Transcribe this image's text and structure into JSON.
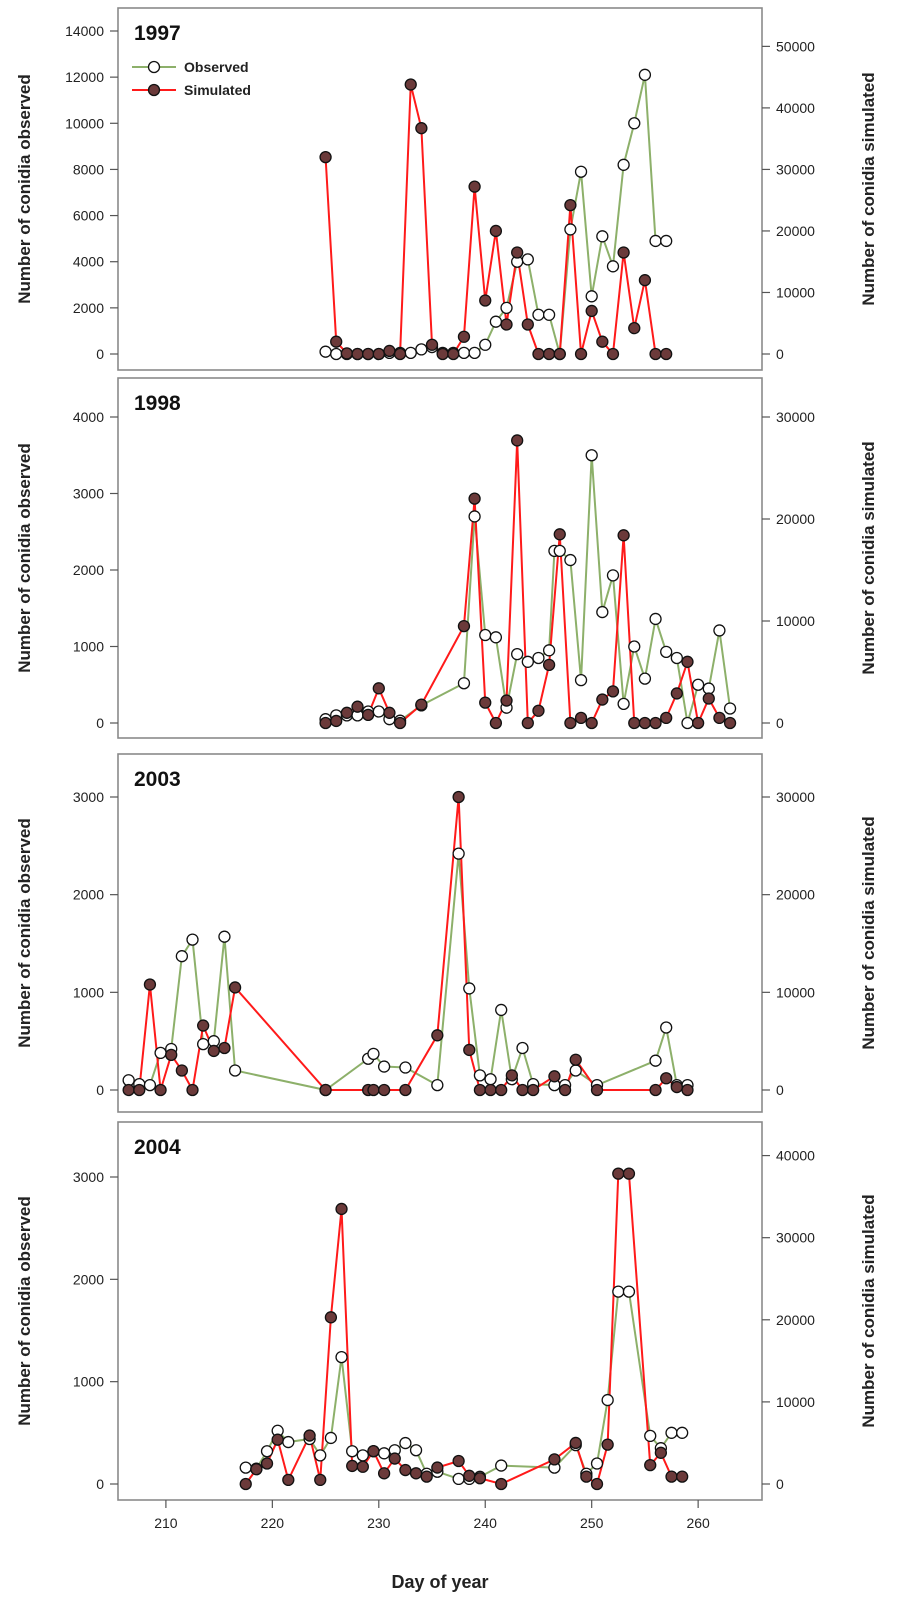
{
  "figure": {
    "xlabel": "Day of year",
    "x_ticks": [
      210,
      220,
      230,
      240,
      250,
      260
    ],
    "xlim": [
      205.5,
      266
    ],
    "left_ylabel": "Number of conidia observed",
    "right_ylabel": "Number of conidia simulated",
    "colors": {
      "observed_line": "#8db06a",
      "simulated_line": "#ff1a1a",
      "simulated_marker": "#6b3a3a",
      "observed_marker": "#ffffff"
    }
  },
  "legend": {
    "observed": "Observed",
    "simulated": "Simulated"
  },
  "chart_data": [
    {
      "type": "line",
      "title": "1997",
      "ylim_left": [
        0,
        14000
      ],
      "left_ticks": [
        0,
        2000,
        4000,
        6000,
        8000,
        10000,
        12000,
        14000
      ],
      "ylim_right": [
        0,
        52500
      ],
      "right_ticks": [
        0,
        10000,
        20000,
        30000,
        40000,
        50000
      ],
      "series": [
        {
          "name": "Observed",
          "axis": "left",
          "x": [
            225,
            226,
            227,
            228,
            229,
            230,
            231,
            232,
            233,
            234,
            235,
            236,
            237,
            238,
            239,
            240,
            241,
            242,
            243,
            244,
            245,
            246,
            247,
            248,
            249,
            250,
            251,
            252,
            253,
            254,
            255,
            256,
            257
          ],
          "y": [
            100,
            0,
            0,
            0,
            0,
            0,
            50,
            50,
            50,
            200,
            300,
            50,
            50,
            50,
            50,
            400,
            1400,
            2000,
            4000,
            4100,
            1700,
            1700,
            0,
            5400,
            7900,
            2500,
            5100,
            3800,
            8200,
            10000,
            12100,
            4900,
            4900
          ]
        },
        {
          "name": "Simulated",
          "axis": "right",
          "x": [
            225,
            226,
            227,
            228,
            229,
            230,
            231,
            232,
            233,
            234,
            235,
            236,
            237,
            238,
            239,
            240,
            241,
            242,
            243,
            244,
            245,
            246,
            247,
            248,
            249,
            250,
            251,
            252,
            253,
            254,
            255,
            256,
            257
          ],
          "y": [
            32000,
            2000,
            100,
            0,
            0,
            0,
            500,
            0,
            43800,
            36700,
            1500,
            0,
            0,
            2800,
            27200,
            8700,
            20000,
            4800,
            16500,
            4800,
            0,
            0,
            0,
            24200,
            0,
            7000,
            2000,
            0,
            16500,
            4200,
            12000,
            0,
            0
          ]
        }
      ]
    },
    {
      "type": "line",
      "title": "1998",
      "ylim_left": [
        0,
        4400
      ],
      "left_ticks": [
        0,
        1000,
        2000,
        3000,
        4000
      ],
      "ylim_right": [
        0,
        33000
      ],
      "right_ticks": [
        0,
        10000,
        20000,
        30000
      ],
      "series": [
        {
          "name": "Observed",
          "axis": "left",
          "x": [
            225,
            226,
            227,
            228,
            229,
            230,
            231,
            232,
            234,
            238,
            239,
            240,
            241,
            242,
            243,
            244,
            245,
            246,
            246.5,
            247,
            248,
            249,
            250,
            251,
            252,
            253,
            254,
            255,
            256,
            257,
            258,
            259,
            260,
            261,
            262,
            263
          ],
          "y": [
            50,
            100,
            100,
            100,
            150,
            150,
            50,
            30,
            230,
            520,
            2700,
            1150,
            1120,
            200,
            900,
            800,
            850,
            950,
            2250,
            2250,
            2130,
            560,
            3500,
            1450,
            1930,
            250,
            1000,
            580,
            1360,
            930,
            850,
            0,
            500,
            450,
            1210,
            190
          ]
        },
        {
          "name": "Simulated",
          "axis": "right",
          "x": [
            225,
            226,
            227,
            228,
            229,
            230,
            231,
            232,
            234,
            238,
            239,
            240,
            241,
            242,
            243,
            244,
            245,
            246,
            247,
            248,
            249,
            250,
            251,
            252,
            253,
            254,
            255,
            256,
            257,
            258,
            259,
            260,
            261,
            262,
            263
          ],
          "y": [
            0,
            200,
            1000,
            1600,
            800,
            3400,
            1000,
            0,
            1800,
            9500,
            22000,
            2000,
            0,
            2200,
            27700,
            0,
            1200,
            5700,
            18500,
            0,
            500,
            0,
            2300,
            3100,
            18400,
            0,
            0,
            0,
            500,
            2900,
            6000,
            0,
            2400,
            500,
            0
          ]
        }
      ]
    },
    {
      "type": "line",
      "title": "2003",
      "ylim_left": [
        0,
        3400
      ],
      "left_ticks": [
        0,
        1000,
        2000,
        3000
      ],
      "ylim_right": [
        0,
        34000
      ],
      "right_ticks": [
        0,
        10000,
        20000,
        30000
      ],
      "series": [
        {
          "name": "Observed",
          "axis": "left",
          "x": [
            206.5,
            207.5,
            208.5,
            209.5,
            210.5,
            211.5,
            212.5,
            213.5,
            214.5,
            215.5,
            216.5,
            225,
            229,
            229.5,
            230.5,
            232.5,
            235.5,
            237.5,
            238.5,
            239.5,
            240.5,
            241.5,
            242.5,
            243.5,
            244.5,
            246.5,
            247.5,
            248.5,
            250.5,
            256,
            257,
            258,
            259
          ],
          "y": [
            100,
            60,
            50,
            380,
            420,
            1370,
            1540,
            470,
            500,
            1570,
            200,
            0,
            320,
            370,
            240,
            230,
            50,
            2420,
            1040,
            150,
            110,
            820,
            110,
            430,
            60,
            50,
            50,
            200,
            50,
            300,
            640,
            50,
            50
          ]
        },
        {
          "name": "Simulated",
          "axis": "right",
          "x": [
            206.5,
            207.5,
            208.5,
            209.5,
            210.5,
            211.5,
            212.5,
            213.5,
            214.5,
            215.5,
            216.5,
            225,
            229,
            229.5,
            230.5,
            232.5,
            235.5,
            237.5,
            238.5,
            239.5,
            240.5,
            241.5,
            242.5,
            243.5,
            244.5,
            246.5,
            247.5,
            248.5,
            250.5,
            256,
            257,
            258,
            259
          ],
          "y": [
            0,
            0,
            10800,
            0,
            3600,
            2000,
            0,
            6600,
            4000,
            4300,
            10500,
            0,
            0,
            0,
            0,
            0,
            5600,
            30000,
            4100,
            0,
            0,
            0,
            1500,
            0,
            0,
            1400,
            0,
            3100,
            0,
            0,
            1200,
            300,
            0
          ]
        }
      ]
    },
    {
      "type": "line",
      "title": "2004",
      "ylim_left": [
        0,
        3450
      ],
      "left_ticks": [
        0,
        1000,
        2000,
        3000
      ],
      "ylim_right": [
        0,
        43000
      ],
      "right_ticks": [
        0,
        10000,
        20000,
        30000,
        40000
      ],
      "series": [
        {
          "name": "Observed",
          "axis": "left",
          "x": [
            217.5,
            218.5,
            219.5,
            220.5,
            221.5,
            223.5,
            224.5,
            225.5,
            226.5,
            227.5,
            228.5,
            229.5,
            230.5,
            231.5,
            232.5,
            233.5,
            234.5,
            235.5,
            237.5,
            238.5,
            239.5,
            241.5,
            246.5,
            248.5,
            249.5,
            250.5,
            251.5,
            252.5,
            253.5,
            255.5,
            256.5,
            257.5,
            258.5
          ],
          "y": [
            160,
            150,
            320,
            520,
            410,
            440,
            280,
            450,
            1240,
            320,
            280,
            320,
            300,
            330,
            400,
            330,
            100,
            120,
            50,
            50,
            70,
            180,
            160,
            380,
            100,
            200,
            820,
            1880,
            1880,
            470,
            350,
            500,
            500
          ]
        },
        {
          "name": "Simulated",
          "axis": "right",
          "x": [
            217.5,
            218.5,
            219.5,
            220.5,
            221.5,
            223.5,
            224.5,
            225.5,
            226.5,
            227.5,
            228.5,
            229.5,
            230.5,
            231.5,
            232.5,
            233.5,
            234.5,
            235.5,
            237.5,
            238.5,
            239.5,
            241.5,
            246.5,
            248.5,
            249.5,
            250.5,
            251.5,
            252.5,
            253.5,
            255.5,
            256.5,
            257.5,
            258.5
          ],
          "y": [
            0,
            1800,
            2500,
            5400,
            500,
            5900,
            500,
            20300,
            33500,
            2200,
            2100,
            4000,
            1300,
            3100,
            1700,
            1300,
            900,
            2000,
            2800,
            1000,
            700,
            0,
            3000,
            5000,
            900,
            0,
            4800,
            37800,
            37800,
            2300,
            3800,
            900,
            900
          ]
        }
      ]
    }
  ]
}
